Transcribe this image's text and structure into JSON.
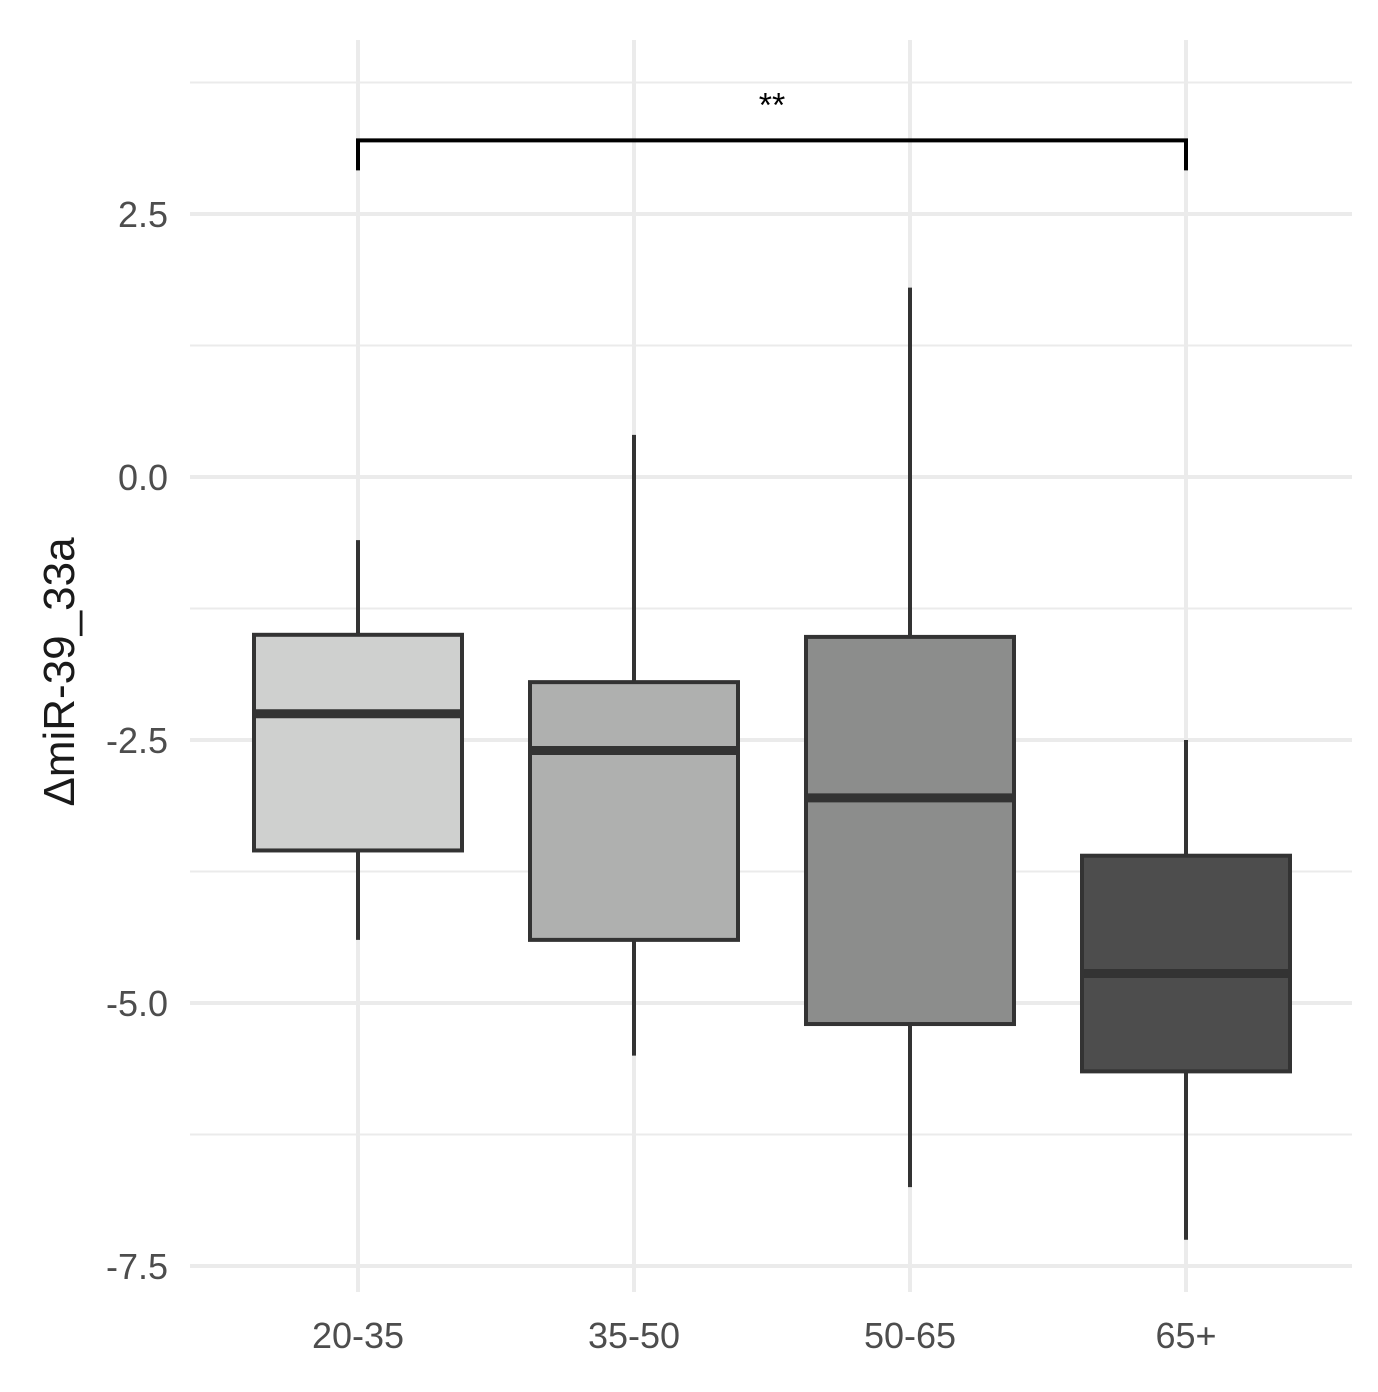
{
  "chart_data": {
    "type": "box",
    "ylabel": "ΔmiR-39_33a",
    "xlabel": "",
    "ylim": [
      -7.7,
      4.1
    ],
    "y_ticks": [
      2.5,
      0.0,
      -2.5,
      -5.0,
      -7.5
    ],
    "y_tick_labels": [
      "2.5",
      "0.0",
      "-2.5",
      "-5.0",
      "-7.5"
    ],
    "y_minor_ticks": [
      3.75,
      1.25,
      -1.25,
      -3.75,
      -6.25
    ],
    "grid": true,
    "categories": [
      "20-35",
      "35-50",
      "50-65",
      "65+"
    ],
    "boxes": [
      {
        "category": "20-35",
        "whisker_low": -4.4,
        "q1": -3.55,
        "median": -2.25,
        "q3": -1.5,
        "whisker_high": -0.6,
        "fill": "#cfd0cf"
      },
      {
        "category": "35-50",
        "whisker_low": -5.5,
        "q1": -4.4,
        "median": -2.6,
        "q3": -1.95,
        "whisker_high": 0.4,
        "fill": "#afb0af"
      },
      {
        "category": "50-65",
        "whisker_low": -6.75,
        "q1": -5.2,
        "median": -3.05,
        "q3": -1.52,
        "whisker_high": 1.8,
        "fill": "#8c8d8c"
      },
      {
        "category": "65+",
        "whisker_low": -7.25,
        "q1": -5.65,
        "median": -4.72,
        "q3": -3.6,
        "whisker_high": -2.5,
        "fill": "#4d4d4d"
      }
    ],
    "significance": {
      "from": "20-35",
      "to": "65+",
      "label": "**",
      "y": 3.2
    },
    "colors": {
      "grid": "#ebebeb",
      "stroke": "#333333",
      "bracket": "#000000"
    }
  }
}
